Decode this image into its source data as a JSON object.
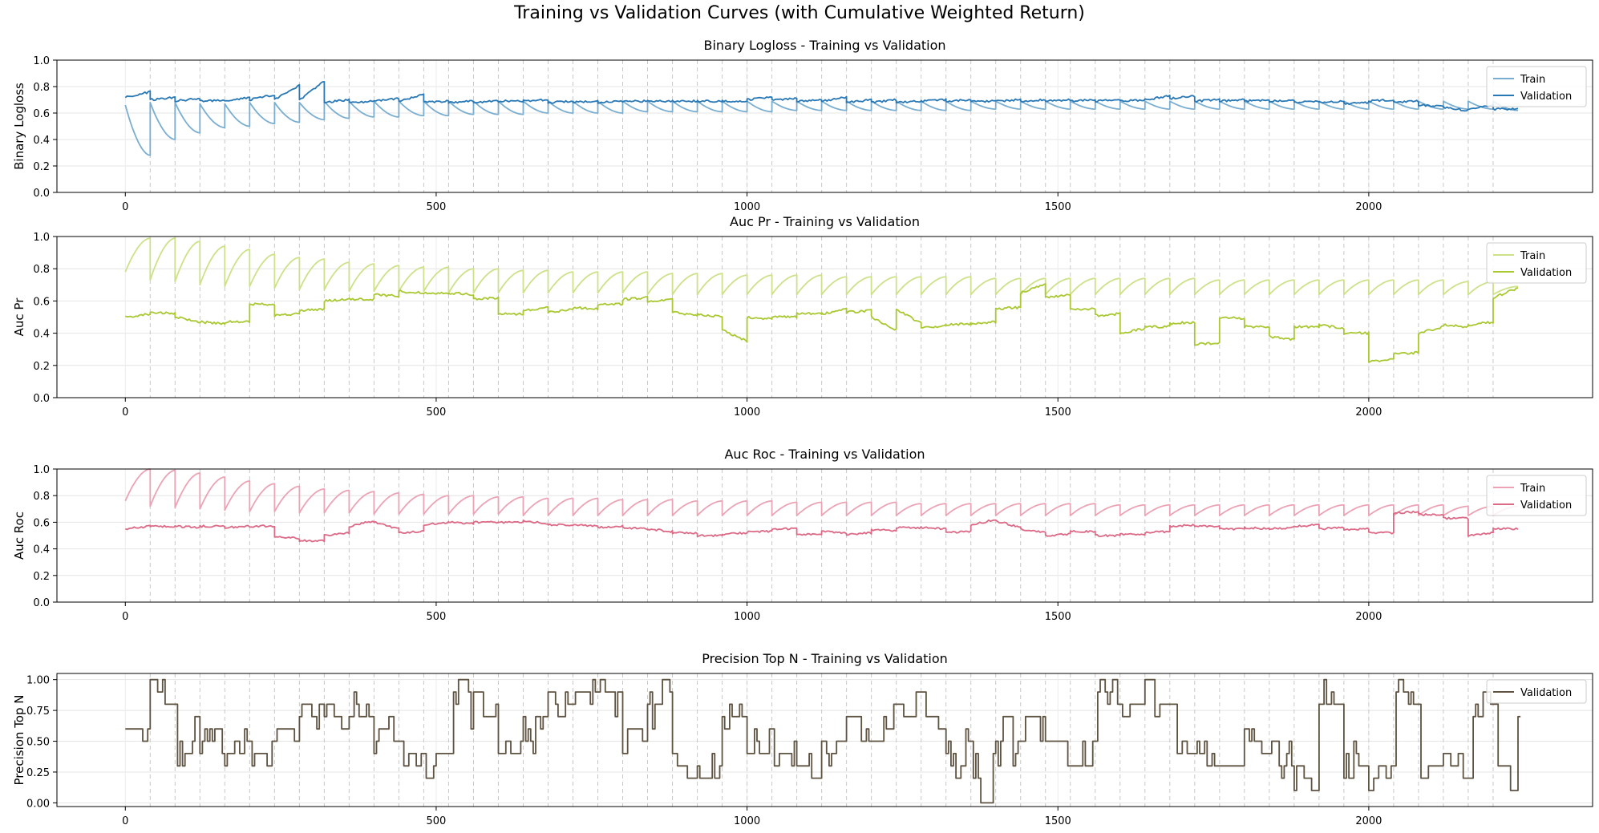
{
  "figure": {
    "suptitle": "Training vs Validation Curves (with Cumulative Weighted Return)"
  },
  "chart_data": [
    {
      "type": "line",
      "title": "Binary Logloss - Training vs Validation",
      "xlabel": "",
      "ylabel": "Binary Logloss",
      "xlim": [
        -110,
        2360
      ],
      "ylim": [
        0,
        1.0
      ],
      "xticks": [
        0,
        500,
        1000,
        1500,
        2000
      ],
      "yticks": [
        0.0,
        0.2,
        0.4,
        0.6,
        0.8,
        1.0
      ],
      "ytick_labels": [
        "0.0",
        "0.2",
        "0.4",
        "0.6",
        "0.8",
        "1.0"
      ],
      "grid": true,
      "legend_position": "upper right",
      "series": [
        {
          "name": "Train",
          "color": "#7aaed1",
          "pattern": "sawtooth-decay",
          "start_values": [
            0.66,
            0.68,
            0.68,
            0.67,
            0.67,
            0.68,
            0.68,
            0.68,
            0.69,
            0.69,
            0.69,
            0.69,
            0.69,
            0.69,
            0.69,
            0.69,
            0.69,
            0.69,
            0.69,
            0.69,
            0.69,
            0.69,
            0.69,
            0.69,
            0.69,
            0.69,
            0.69,
            0.69,
            0.69,
            0.69,
            0.69,
            0.69,
            0.69,
            0.69,
            0.69,
            0.69,
            0.69,
            0.69,
            0.69,
            0.69,
            0.69,
            0.69,
            0.69,
            0.69,
            0.69,
            0.69,
            0.69,
            0.69,
            0.69,
            0.69,
            0.69,
            0.69,
            0.69,
            0.69,
            0.69,
            0.69
          ],
          "end_values": [
            0.28,
            0.4,
            0.45,
            0.49,
            0.5,
            0.52,
            0.53,
            0.55,
            0.56,
            0.57,
            0.57,
            0.58,
            0.58,
            0.59,
            0.59,
            0.59,
            0.6,
            0.6,
            0.6,
            0.6,
            0.61,
            0.61,
            0.61,
            0.61,
            0.61,
            0.61,
            0.62,
            0.62,
            0.62,
            0.62,
            0.62,
            0.62,
            0.62,
            0.62,
            0.63,
            0.63,
            0.63,
            0.63,
            0.63,
            0.63,
            0.63,
            0.63,
            0.63,
            0.63,
            0.63,
            0.63,
            0.63,
            0.63,
            0.63,
            0.63,
            0.63,
            0.63,
            0.63,
            0.63,
            0.63,
            0.62
          ]
        },
        {
          "name": "Validation",
          "color": "#2878b5",
          "pattern": "segments",
          "start_values": [
            0.72,
            0.7,
            0.69,
            0.69,
            0.69,
            0.7,
            0.7,
            0.7,
            0.68,
            0.68,
            0.69,
            0.69,
            0.68,
            0.68,
            0.68,
            0.69,
            0.69,
            0.68,
            0.68,
            0.68,
            0.69,
            0.69,
            0.69,
            0.69,
            0.69,
            0.7,
            0.7,
            0.69,
            0.69,
            0.68,
            0.68,
            0.68,
            0.69,
            0.69,
            0.69,
            0.69,
            0.69,
            0.69,
            0.69,
            0.69,
            0.69,
            0.7,
            0.71,
            0.69,
            0.69,
            0.69,
            0.69,
            0.68,
            0.68,
            0.67,
            0.69,
            0.68,
            0.66,
            0.64,
            0.63,
            0.63
          ],
          "end_values": [
            0.76,
            0.72,
            0.71,
            0.7,
            0.72,
            0.74,
            0.81,
            0.84,
            0.7,
            0.69,
            0.71,
            0.74,
            0.69,
            0.69,
            0.69,
            0.69,
            0.7,
            0.69,
            0.69,
            0.69,
            0.69,
            0.69,
            0.69,
            0.69,
            0.69,
            0.72,
            0.71,
            0.7,
            0.72,
            0.7,
            0.7,
            0.69,
            0.7,
            0.7,
            0.69,
            0.7,
            0.7,
            0.7,
            0.7,
            0.7,
            0.7,
            0.73,
            0.73,
            0.7,
            0.7,
            0.7,
            0.7,
            0.69,
            0.69,
            0.68,
            0.7,
            0.69,
            0.65,
            0.62,
            0.66,
            0.63
          ]
        }
      ]
    },
    {
      "type": "line",
      "title": "Auc Pr - Training vs Validation",
      "xlabel": "",
      "ylabel": "Auc Pr",
      "xlim": [
        -110,
        2360
      ],
      "ylim": [
        0,
        1.0
      ],
      "xticks": [
        0,
        500,
        1000,
        1500,
        2000
      ],
      "yticks": [
        0.0,
        0.2,
        0.4,
        0.6,
        0.8,
        1.0
      ],
      "ytick_labels": [
        "0.0",
        "0.2",
        "0.4",
        "0.6",
        "0.8",
        "1.0"
      ],
      "grid": true,
      "legend_position": "upper right",
      "series": [
        {
          "name": "Train",
          "color": "#cde189",
          "pattern": "sawtooth-rise",
          "start_values": [
            0.78,
            0.73,
            0.72,
            0.7,
            0.69,
            0.69,
            0.68,
            0.67,
            0.67,
            0.66,
            0.66,
            0.66,
            0.66,
            0.65,
            0.65,
            0.65,
            0.65,
            0.65,
            0.65,
            0.65,
            0.65,
            0.64,
            0.64,
            0.64,
            0.64,
            0.64,
            0.64,
            0.64,
            0.64,
            0.64,
            0.64,
            0.64,
            0.64,
            0.64,
            0.64,
            0.64,
            0.64,
            0.64,
            0.64,
            0.64,
            0.64,
            0.64,
            0.64,
            0.64,
            0.64,
            0.64,
            0.64,
            0.64,
            0.64,
            0.64,
            0.64,
            0.64,
            0.64,
            0.64,
            0.64,
            0.64
          ],
          "end_values": [
            0.99,
            0.99,
            0.97,
            0.94,
            0.92,
            0.89,
            0.87,
            0.86,
            0.84,
            0.83,
            0.82,
            0.81,
            0.81,
            0.8,
            0.8,
            0.79,
            0.79,
            0.78,
            0.78,
            0.78,
            0.78,
            0.77,
            0.77,
            0.77,
            0.76,
            0.76,
            0.76,
            0.76,
            0.75,
            0.75,
            0.75,
            0.75,
            0.75,
            0.75,
            0.74,
            0.74,
            0.74,
            0.74,
            0.74,
            0.74,
            0.74,
            0.74,
            0.74,
            0.73,
            0.73,
            0.73,
            0.73,
            0.73,
            0.73,
            0.73,
            0.73,
            0.73,
            0.73,
            0.72,
            0.72,
            0.69
          ]
        },
        {
          "name": "Validation",
          "color": "#a9c832",
          "pattern": "segments",
          "start_values": [
            0.5,
            0.53,
            0.5,
            0.47,
            0.47,
            0.58,
            0.51,
            0.54,
            0.6,
            0.61,
            0.64,
            0.66,
            0.65,
            0.65,
            0.61,
            0.52,
            0.54,
            0.53,
            0.56,
            0.58,
            0.61,
            0.6,
            0.53,
            0.52,
            0.42,
            0.5,
            0.5,
            0.52,
            0.52,
            0.53,
            0.5,
            0.55,
            0.43,
            0.45,
            0.46,
            0.55,
            0.65,
            0.62,
            0.55,
            0.51,
            0.4,
            0.44,
            0.46,
            0.33,
            0.5,
            0.44,
            0.38,
            0.44,
            0.45,
            0.4,
            0.22,
            0.27,
            0.4,
            0.45,
            0.45,
            0.62
          ],
          "end_values": [
            0.52,
            0.52,
            0.47,
            0.46,
            0.47,
            0.58,
            0.52,
            0.55,
            0.61,
            0.61,
            0.63,
            0.65,
            0.65,
            0.64,
            0.62,
            0.52,
            0.56,
            0.55,
            0.55,
            0.58,
            0.62,
            0.61,
            0.51,
            0.5,
            0.35,
            0.49,
            0.5,
            0.52,
            0.55,
            0.54,
            0.42,
            0.46,
            0.45,
            0.46,
            0.47,
            0.56,
            0.71,
            0.64,
            0.55,
            0.52,
            0.43,
            0.44,
            0.47,
            0.34,
            0.49,
            0.44,
            0.36,
            0.44,
            0.43,
            0.4,
            0.24,
            0.28,
            0.44,
            0.44,
            0.47,
            0.68
          ]
        }
      ]
    },
    {
      "type": "line",
      "title": "Auc Roc - Training vs Validation",
      "xlabel": "",
      "ylabel": "Auc Roc",
      "xlim": [
        -110,
        2360
      ],
      "ylim": [
        0,
        1.0
      ],
      "xticks": [
        0,
        500,
        1000,
        1500,
        2000
      ],
      "yticks": [
        0.0,
        0.2,
        0.4,
        0.6,
        0.8,
        1.0
      ],
      "ytick_labels": [
        "0.0",
        "0.2",
        "0.4",
        "0.6",
        "0.8",
        "1.0"
      ],
      "grid": true,
      "legend_position": "upper right",
      "series": [
        {
          "name": "Train",
          "color": "#eba3b5",
          "pattern": "sawtooth-rise",
          "start_values": [
            0.76,
            0.72,
            0.71,
            0.7,
            0.69,
            0.68,
            0.68,
            0.67,
            0.67,
            0.67,
            0.66,
            0.66,
            0.66,
            0.66,
            0.66,
            0.66,
            0.65,
            0.65,
            0.65,
            0.65,
            0.65,
            0.65,
            0.65,
            0.65,
            0.65,
            0.65,
            0.65,
            0.65,
            0.65,
            0.65,
            0.65,
            0.65,
            0.65,
            0.65,
            0.65,
            0.65,
            0.65,
            0.65,
            0.65,
            0.65,
            0.65,
            0.65,
            0.65,
            0.65,
            0.65,
            0.65,
            0.65,
            0.65,
            0.65,
            0.65,
            0.65,
            0.65,
            0.65,
            0.65,
            0.65,
            0.65
          ],
          "end_values": [
            1.0,
            0.99,
            0.97,
            0.94,
            0.91,
            0.89,
            0.87,
            0.85,
            0.84,
            0.83,
            0.82,
            0.81,
            0.8,
            0.8,
            0.79,
            0.79,
            0.78,
            0.78,
            0.78,
            0.77,
            0.77,
            0.77,
            0.76,
            0.76,
            0.76,
            0.76,
            0.75,
            0.75,
            0.75,
            0.75,
            0.75,
            0.74,
            0.74,
            0.74,
            0.74,
            0.74,
            0.74,
            0.74,
            0.74,
            0.73,
            0.73,
            0.73,
            0.73,
            0.73,
            0.73,
            0.73,
            0.73,
            0.73,
            0.73,
            0.73,
            0.73,
            0.73,
            0.73,
            0.72,
            0.72,
            0.72
          ]
        },
        {
          "name": "Validation",
          "color": "#dc6a87",
          "pattern": "segments",
          "start_values": [
            0.55,
            0.57,
            0.57,
            0.57,
            0.56,
            0.57,
            0.49,
            0.46,
            0.5,
            0.57,
            0.6,
            0.52,
            0.58,
            0.6,
            0.6,
            0.6,
            0.61,
            0.58,
            0.58,
            0.56,
            0.56,
            0.55,
            0.52,
            0.5,
            0.51,
            0.53,
            0.55,
            0.51,
            0.53,
            0.51,
            0.54,
            0.56,
            0.56,
            0.52,
            0.58,
            0.61,
            0.55,
            0.5,
            0.53,
            0.5,
            0.51,
            0.52,
            0.57,
            0.57,
            0.55,
            0.56,
            0.55,
            0.57,
            0.55,
            0.54,
            0.52,
            0.67,
            0.66,
            0.63,
            0.5,
            0.55
          ],
          "end_values": [
            0.57,
            0.57,
            0.56,
            0.57,
            0.57,
            0.57,
            0.48,
            0.46,
            0.52,
            0.61,
            0.55,
            0.53,
            0.6,
            0.59,
            0.6,
            0.6,
            0.59,
            0.58,
            0.57,
            0.57,
            0.55,
            0.53,
            0.52,
            0.5,
            0.52,
            0.53,
            0.55,
            0.51,
            0.52,
            0.52,
            0.54,
            0.56,
            0.55,
            0.53,
            0.62,
            0.56,
            0.52,
            0.51,
            0.53,
            0.5,
            0.51,
            0.53,
            0.58,
            0.57,
            0.55,
            0.55,
            0.56,
            0.58,
            0.56,
            0.55,
            0.52,
            0.68,
            0.65,
            0.63,
            0.52,
            0.55
          ]
        }
      ]
    },
    {
      "type": "line",
      "title": "Precision Top N - Training vs Validation",
      "xlabel": "",
      "ylabel": "Precision Top N",
      "xlim": [
        -110,
        2360
      ],
      "ylim": [
        -0.03,
        1.05
      ],
      "xticks": [
        0,
        500,
        1000,
        1500,
        2000
      ],
      "yticks": [
        0.0,
        0.25,
        0.5,
        0.75,
        1.0
      ],
      "ytick_labels": [
        "0.00",
        "0.25",
        "0.50",
        "0.75",
        "1.00"
      ],
      "grid": true,
      "legend_position": "upper right",
      "series": [
        {
          "name": "Validation",
          "color": "#5e5240",
          "pattern": "step",
          "sample_x": [
            0,
            40,
            80,
            120,
            160,
            200,
            240,
            280,
            320,
            360,
            400,
            440,
            480,
            520,
            560,
            600,
            640,
            680,
            720,
            760,
            800,
            840,
            880,
            920,
            960,
            1000,
            1040,
            1080,
            1120,
            1160,
            1200,
            1240,
            1280,
            1320,
            1360,
            1400,
            1440,
            1480,
            1520,
            1560,
            1600,
            1640,
            1680,
            1720,
            1760,
            1800,
            1840,
            1880,
            1920,
            1960,
            2000,
            2040,
            2080,
            2120,
            2160,
            2200,
            2240
          ],
          "sample_values": [
            0.6,
            0.9,
            0.4,
            0.5,
            0.4,
            0.4,
            0.5,
            0.7,
            0.7,
            0.8,
            0.6,
            0.4,
            0.3,
            0.9,
            0.8,
            0.5,
            0.6,
            0.8,
            0.9,
            0.8,
            0.6,
            0.9,
            0.3,
            0.3,
            0.7,
            0.5,
            0.4,
            0.3,
            0.4,
            0.6,
            0.7,
            0.8,
            0.7,
            0.4,
            0.3,
            0.4,
            0.6,
            0.5,
            0.4,
            0.9,
            0.7,
            0.8,
            0.5,
            0.4,
            0.3,
            0.5,
            0.4,
            0.2,
            0.9,
            0.3,
            0.2,
            0.9,
            0.3,
            0.3,
            0.8,
            0.2,
            0.7
          ]
        }
      ]
    }
  ]
}
